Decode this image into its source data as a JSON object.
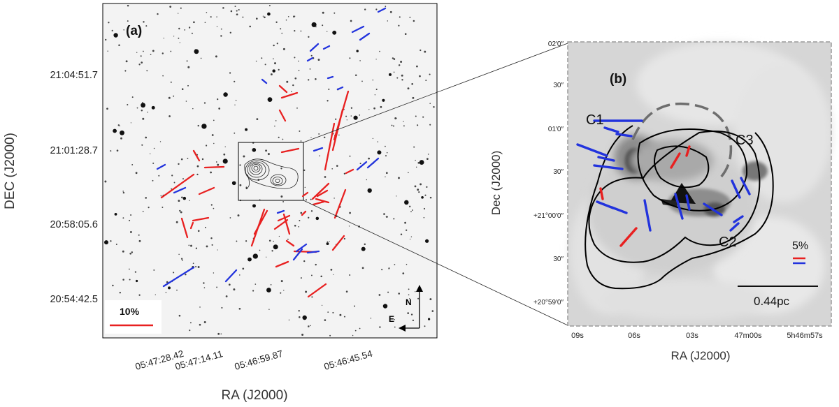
{
  "panel_a": {
    "label": "(a)",
    "x_axis_title": "RA (J2000)",
    "y_axis_title": "DEC (J2000)",
    "x_ticks": [
      "05:47:28.42",
      "05:47:14.11",
      "05:46:59.87",
      "05:46:45.54"
    ],
    "y_ticks": [
      "21:04:51.7",
      "21:01:28.7",
      "20:58:05.6",
      "20:54:42.5"
    ],
    "scale_bar_label": "10%",
    "compass_north": "N",
    "compass_east": "E",
    "colors": {
      "optical_vectors": "#e82020",
      "nir_vectors": "#2233dd",
      "frame": "#000000"
    }
  },
  "panel_b": {
    "label": "(b)",
    "x_axis_title": "RA (J2000)",
    "y_axis_title": "Dec (J2000)",
    "x_ticks": [
      "09s",
      "06s",
      "03s",
      "47m00s",
      "5h46m57s"
    ],
    "y_ticks": [
      "02′0″",
      "30″",
      "01′0″",
      "30″",
      "+21°00′0″",
      "30″",
      "+20°59′0″"
    ],
    "clump_labels": [
      "C1",
      "C2",
      "C3"
    ],
    "polarization_scale_label": "5%",
    "length_scale_label": "0.44pc",
    "colors": {
      "optical_vectors": "#e82020",
      "nir_vectors": "#2233dd",
      "contours": "#000000"
    }
  }
}
